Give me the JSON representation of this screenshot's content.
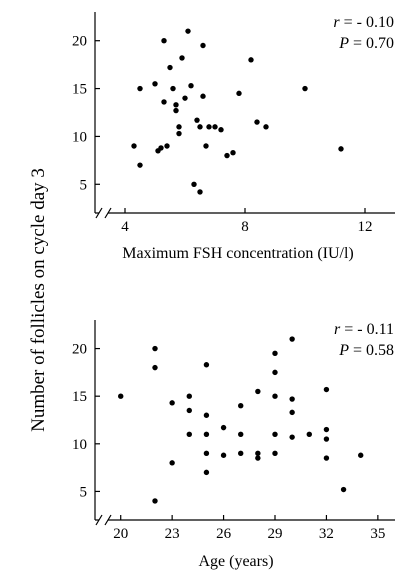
{
  "figure": {
    "shared_ylabel": "Number of follicles on cycle day 3"
  },
  "chart_data": [
    {
      "type": "scatter",
      "xlabel": "Maximum FSH concentration (IU/l)",
      "ylabel": "Number of follicles on cycle day 3",
      "xlim": [
        3,
        13
      ],
      "ylim": [
        2,
        23
      ],
      "xticks": [
        4,
        8,
        12
      ],
      "yticks": [
        5,
        10,
        15,
        20
      ],
      "grid": false,
      "annotation": {
        "r_symbol": "r",
        "r_value": " = - 0.10",
        "p_symbol": "P",
        "p_value": " = 0.70"
      },
      "points": [
        {
          "x": 4.3,
          "y": 9
        },
        {
          "x": 4.5,
          "y": 7
        },
        {
          "x": 4.5,
          "y": 15
        },
        {
          "x": 5.0,
          "y": 15.5
        },
        {
          "x": 5.1,
          "y": 8.5
        },
        {
          "x": 5.2,
          "y": 8.8
        },
        {
          "x": 5.3,
          "y": 20
        },
        {
          "x": 5.3,
          "y": 13.6
        },
        {
          "x": 5.4,
          "y": 9
        },
        {
          "x": 5.5,
          "y": 17.2
        },
        {
          "x": 5.6,
          "y": 15
        },
        {
          "x": 5.7,
          "y": 13.3
        },
        {
          "x": 5.7,
          "y": 12.7
        },
        {
          "x": 5.8,
          "y": 11
        },
        {
          "x": 5.8,
          "y": 10.3
        },
        {
          "x": 5.9,
          "y": 18.2
        },
        {
          "x": 6.0,
          "y": 14
        },
        {
          "x": 6.1,
          "y": 21
        },
        {
          "x": 6.2,
          "y": 15.3
        },
        {
          "x": 6.3,
          "y": 5
        },
        {
          "x": 6.4,
          "y": 11.7
        },
        {
          "x": 6.5,
          "y": 4.2
        },
        {
          "x": 6.5,
          "y": 11
        },
        {
          "x": 6.6,
          "y": 19.5
        },
        {
          "x": 6.6,
          "y": 14.2
        },
        {
          "x": 6.7,
          "y": 9
        },
        {
          "x": 6.8,
          "y": 11
        },
        {
          "x": 7.0,
          "y": 11
        },
        {
          "x": 7.2,
          "y": 10.7
        },
        {
          "x": 7.4,
          "y": 8
        },
        {
          "x": 7.6,
          "y": 8.3
        },
        {
          "x": 7.8,
          "y": 14.5
        },
        {
          "x": 8.2,
          "y": 18
        },
        {
          "x": 8.4,
          "y": 11.5
        },
        {
          "x": 8.7,
          "y": 11
        },
        {
          "x": 10.0,
          "y": 15
        },
        {
          "x": 11.2,
          "y": 8.7
        }
      ]
    },
    {
      "type": "scatter",
      "xlabel": "Age (years)",
      "ylabel": "Number of follicles on cycle day 3",
      "xlim": [
        18.5,
        36
      ],
      "ylim": [
        2,
        23
      ],
      "xticks": [
        20,
        23,
        26,
        29,
        32,
        35
      ],
      "yticks": [
        5,
        10,
        15,
        20
      ],
      "grid": false,
      "annotation": {
        "r_symbol": "r",
        "r_value": " = - 0.11",
        "p_symbol": "P",
        "p_value": " = 0.58"
      },
      "points": [
        {
          "x": 20,
          "y": 15
        },
        {
          "x": 22,
          "y": 20
        },
        {
          "x": 22,
          "y": 18
        },
        {
          "x": 22,
          "y": 4
        },
        {
          "x": 23,
          "y": 14.3
        },
        {
          "x": 23,
          "y": 8
        },
        {
          "x": 24,
          "y": 15
        },
        {
          "x": 24,
          "y": 13.5
        },
        {
          "x": 24,
          "y": 11
        },
        {
          "x": 25,
          "y": 18.3
        },
        {
          "x": 25,
          "y": 13
        },
        {
          "x": 25,
          "y": 11
        },
        {
          "x": 25,
          "y": 9
        },
        {
          "x": 25,
          "y": 7
        },
        {
          "x": 26,
          "y": 11.7
        },
        {
          "x": 26,
          "y": 8.8
        },
        {
          "x": 27,
          "y": 14
        },
        {
          "x": 27,
          "y": 11
        },
        {
          "x": 27,
          "y": 9
        },
        {
          "x": 28,
          "y": 15.5
        },
        {
          "x": 28,
          "y": 9
        },
        {
          "x": 28,
          "y": 8.5
        },
        {
          "x": 29,
          "y": 19.5
        },
        {
          "x": 29,
          "y": 17.5
        },
        {
          "x": 29,
          "y": 15
        },
        {
          "x": 29,
          "y": 11
        },
        {
          "x": 29,
          "y": 9
        },
        {
          "x": 30,
          "y": 21
        },
        {
          "x": 30,
          "y": 14.7
        },
        {
          "x": 30,
          "y": 13.3
        },
        {
          "x": 30,
          "y": 10.7
        },
        {
          "x": 31,
          "y": 11
        },
        {
          "x": 32,
          "y": 15.7
        },
        {
          "x": 32,
          "y": 11.5
        },
        {
          "x": 32,
          "y": 10.5
        },
        {
          "x": 32,
          "y": 8.5
        },
        {
          "x": 33,
          "y": 5.2
        },
        {
          "x": 34,
          "y": 8.8
        }
      ]
    }
  ]
}
